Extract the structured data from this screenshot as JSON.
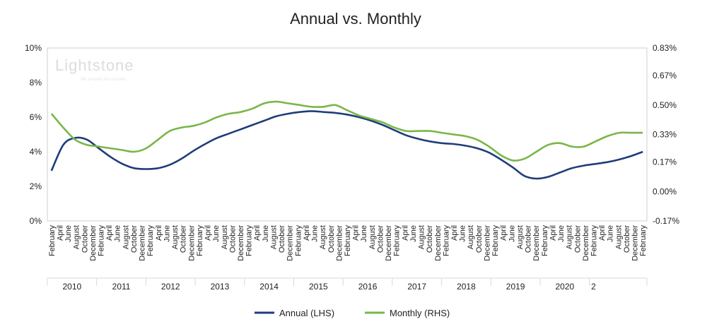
{
  "chart_data": {
    "type": "line",
    "title": "Annual vs. Monthly",
    "watermark": {
      "name": "Lightstone",
      "tagline": "We simplify the complex"
    },
    "x_labels": [
      "February",
      "April",
      "June",
      "August",
      "October",
      "December",
      "February",
      "April",
      "June",
      "August",
      "October",
      "December",
      "February",
      "April",
      "June",
      "August",
      "October",
      "December",
      "February",
      "April",
      "June",
      "August",
      "October",
      "December",
      "February",
      "April",
      "June",
      "August",
      "October",
      "December",
      "February",
      "April",
      "June",
      "August",
      "October",
      "December",
      "February",
      "April",
      "June",
      "August",
      "October",
      "December",
      "February",
      "April",
      "June",
      "August",
      "October",
      "December",
      "February",
      "April",
      "June",
      "August",
      "October",
      "December",
      "February",
      "April",
      "June",
      "August",
      "October",
      "December",
      "February",
      "April",
      "June",
      "August",
      "October",
      "December",
      "February",
      "April",
      "June",
      "August",
      "October",
      "December",
      "February"
    ],
    "year_groups": [
      {
        "label": "2010",
        "start": 0,
        "end": 5
      },
      {
        "label": "2011",
        "start": 6,
        "end": 11
      },
      {
        "label": "2012",
        "start": 12,
        "end": 17
      },
      {
        "label": "2013",
        "start": 18,
        "end": 23
      },
      {
        "label": "2014",
        "start": 24,
        "end": 29
      },
      {
        "label": "2015",
        "start": 30,
        "end": 35
      },
      {
        "label": "2016",
        "start": 36,
        "end": 41
      },
      {
        "label": "2017",
        "start": 42,
        "end": 47
      },
      {
        "label": "2018",
        "start": 48,
        "end": 53
      },
      {
        "label": "2019",
        "start": 54,
        "end": 59
      },
      {
        "label": "2020",
        "start": 60,
        "end": 65
      },
      {
        "label": "2",
        "start": 66,
        "end": 66
      }
    ],
    "y_left": {
      "ticks": [
        "0%",
        "2%",
        "4%",
        "6%",
        "8%",
        "10%"
      ],
      "min": 0,
      "max": 10
    },
    "y_right": {
      "ticks": [
        "-0.17%",
        "0.00%",
        "0.17%",
        "0.33%",
        "0.50%",
        "0.67%",
        "0.83%"
      ],
      "min": -0.17,
      "max": 0.83
    },
    "series": [
      {
        "name": "Annual (LHS)",
        "axis": "left",
        "color": "#1f3d7a",
        "values": [
          2.9,
          4.4,
          4.8,
          4.7,
          4.2,
          3.7,
          3.3,
          3.05,
          3.0,
          3.05,
          3.25,
          3.6,
          4.05,
          4.45,
          4.8,
          5.05,
          5.3,
          5.55,
          5.8,
          6.05,
          6.2,
          6.3,
          6.35,
          6.3,
          6.25,
          6.15,
          6.0,
          5.8,
          5.55,
          5.25,
          4.95,
          4.75,
          4.6,
          4.5,
          4.45,
          4.35,
          4.2,
          3.95,
          3.55,
          3.1,
          2.6,
          2.45,
          2.55,
          2.8,
          3.05,
          3.2,
          3.3,
          3.4,
          3.55,
          3.75,
          4.0
        ]
      },
      {
        "name": "Monthly (RHS)",
        "axis": "right",
        "color": "#7ab648",
        "values": [
          0.45,
          0.37,
          0.3,
          0.27,
          0.26,
          0.25,
          0.24,
          0.23,
          0.25,
          0.3,
          0.35,
          0.37,
          0.38,
          0.4,
          0.43,
          0.45,
          0.46,
          0.48,
          0.51,
          0.52,
          0.51,
          0.5,
          0.49,
          0.49,
          0.5,
          0.47,
          0.44,
          0.42,
          0.4,
          0.37,
          0.35,
          0.35,
          0.35,
          0.34,
          0.33,
          0.32,
          0.3,
          0.26,
          0.21,
          0.18,
          0.19,
          0.23,
          0.27,
          0.28,
          0.26,
          0.26,
          0.29,
          0.32,
          0.34,
          0.34,
          0.34
        ]
      }
    ],
    "legend_position": "bottom-center"
  }
}
